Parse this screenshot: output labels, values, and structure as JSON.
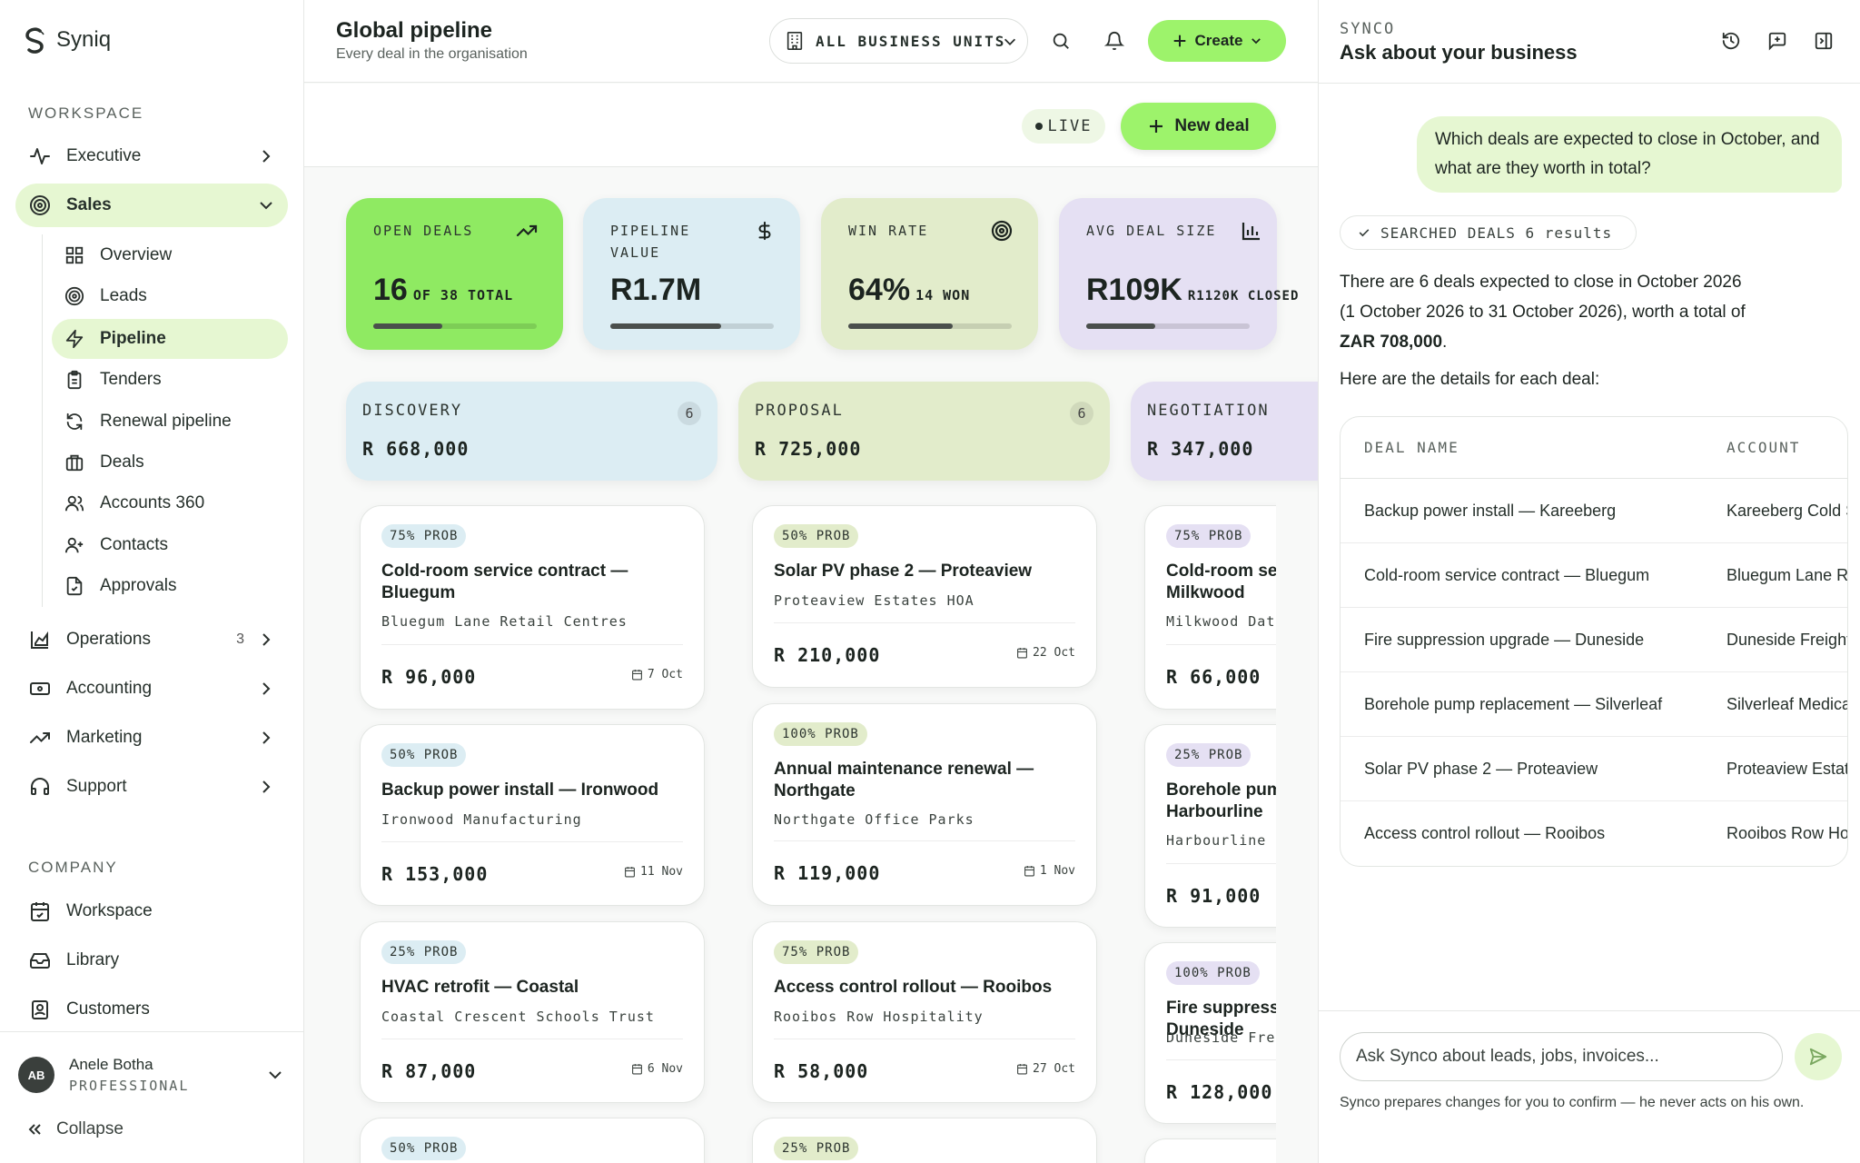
{
  "app": {
    "name": "Syniq"
  },
  "sidebar": {
    "workspace_label": "WORKSPACE",
    "company_label": "COMPANY",
    "items": [
      {
        "label": "Executive"
      },
      {
        "label": "Sales"
      },
      {
        "label": "Operations",
        "count": "3"
      },
      {
        "label": "Accounting"
      },
      {
        "label": "Marketing"
      },
      {
        "label": "Support"
      }
    ],
    "sales_sub": [
      {
        "label": "Overview"
      },
      {
        "label": "Leads"
      },
      {
        "label": "Pipeline"
      },
      {
        "label": "Tenders"
      },
      {
        "label": "Renewal pipeline"
      },
      {
        "label": "Deals"
      },
      {
        "label": "Accounts 360"
      },
      {
        "label": "Contacts"
      },
      {
        "label": "Approvals"
      }
    ],
    "company_items": [
      {
        "label": "Workspace"
      },
      {
        "label": "Library"
      },
      {
        "label": "Customers"
      }
    ],
    "user": {
      "initials": "AB",
      "name": "Anele Botha",
      "role": "PROFESSIONAL"
    },
    "collapse_label": "Collapse"
  },
  "header": {
    "title": "Global pipeline",
    "subtitle": "Every deal in the organisation",
    "business_units": "ALL BUSINESS UNITS",
    "create_label": "Create",
    "live_label": "LIVE",
    "new_deal_label": "New deal"
  },
  "kpis": [
    {
      "label": "OPEN DEALS",
      "value": "16",
      "suffix": "OF 38 TOTAL",
      "progress": 0.42
    },
    {
      "label": "PIPELINE VALUE",
      "value": "R1.7M",
      "suffix": "",
      "progress": 0.68
    },
    {
      "label": "WIN RATE",
      "value": "64%",
      "suffix": "14 WON",
      "progress": 0.64
    },
    {
      "label": "AVG DEAL SIZE",
      "value": "R109K",
      "suffix": "R1120K CLOSED",
      "progress": 0.42
    }
  ],
  "stages": [
    {
      "name": "DISCOVERY",
      "count": "6",
      "value": "R 668,000"
    },
    {
      "name": "PROPOSAL",
      "count": "6",
      "value": "R 725,000"
    },
    {
      "name": "NEGOTIATION",
      "count": "",
      "value": "R 347,000"
    }
  ],
  "cards": {
    "discovery": [
      {
        "prob": "75% PROB",
        "title": "Cold-room service contract — Bluegum",
        "account": "Bluegum Lane Retail Centres",
        "amount": "R 96,000",
        "date": "7 Oct"
      },
      {
        "prob": "50% PROB",
        "title": "Backup power install — Ironwood",
        "account": "Ironwood Manufacturing",
        "amount": "R 153,000",
        "date": "11 Nov"
      },
      {
        "prob": "25% PROB",
        "title": "HVAC retrofit — Coastal",
        "account": "Coastal Crescent Schools Trust",
        "amount": "R 87,000",
        "date": "6 Nov"
      },
      {
        "prob": "50% PROB"
      }
    ],
    "proposal": [
      {
        "prob": "50% PROB",
        "title": "Solar PV phase 2 — Proteaview",
        "account": "Proteaview Estates HOA",
        "amount": "R 210,000",
        "date": "22 Oct"
      },
      {
        "prob": "100% PROB",
        "title": "Annual maintenance renewal — Northgate",
        "account": "Northgate Office Parks",
        "amount": "R 119,000",
        "date": "1 Nov"
      },
      {
        "prob": "75% PROB",
        "title": "Access control rollout — Rooibos",
        "account": "Rooibos Row Hospitality",
        "amount": "R 58,000",
        "date": "27 Oct"
      },
      {
        "prob": "25% PROB"
      }
    ],
    "negotiation": [
      {
        "prob": "75% PROB",
        "title": "Cold-room service contract — Milkwood",
        "account": "Milkwood Data Centres",
        "amount": "R 66,000"
      },
      {
        "prob": "25% PROB",
        "title": "Borehole pump replacement — Harbourline",
        "account": "Harbourline Ports",
        "amount": "R 91,000"
      },
      {
        "prob": "100% PROB",
        "title": "Fire suppression upgrade — Duneside",
        "account": "Duneside Freight",
        "amount": "R 128,000"
      }
    ]
  },
  "chat": {
    "label": "SYNCO",
    "title": "Ask about your business",
    "user_message": "Which deals are expected to close in October, and what are they worth in total?",
    "tool_label": "SEARCHED DEALS 6 results",
    "answer_line1": "There are 6 deals expected to close in October 2026",
    "answer_line2": "(1 October 2026 to 31 October 2026), worth a total of",
    "answer_total": "ZAR 708,000",
    "answer_period": ".",
    "answer_details": "Here are the details for each deal:",
    "table": {
      "headers": [
        "DEAL NAME",
        "ACCOUNT"
      ],
      "rows": [
        [
          "Backup power install — Kareeberg",
          "Kareeberg Cold Storage"
        ],
        [
          "Cold-room service contract — Bluegum",
          "Bluegum Lane Retail Centres"
        ],
        [
          "Fire suppression upgrade — Duneside",
          "Duneside Freight"
        ],
        [
          "Borehole pump replacement — Silverleaf",
          "Silverleaf Medical"
        ],
        [
          "Solar PV phase 2 — Proteaview",
          "Proteaview Estates HOA"
        ],
        [
          "Access control rollout — Rooibos",
          "Rooibos Row Hospitality"
        ]
      ]
    },
    "input_placeholder": "Ask Synco about leads, jobs, invoices...",
    "disclaimer": "Synco prepares changes for you to confirm — he never acts on his own."
  },
  "colors": {
    "accent": "#9df36b",
    "accent_soft": "#e6f7d2",
    "kpi_open": "#8fea62",
    "kpi_pipeline": "#dcedf3",
    "kpi_win": "#e2eccb",
    "kpi_avg": "#e5e0f3",
    "stage_discovery": "#dcedf3",
    "stage_proposal": "#e2eccb",
    "stage_negotiation": "#e5e0f3"
  }
}
